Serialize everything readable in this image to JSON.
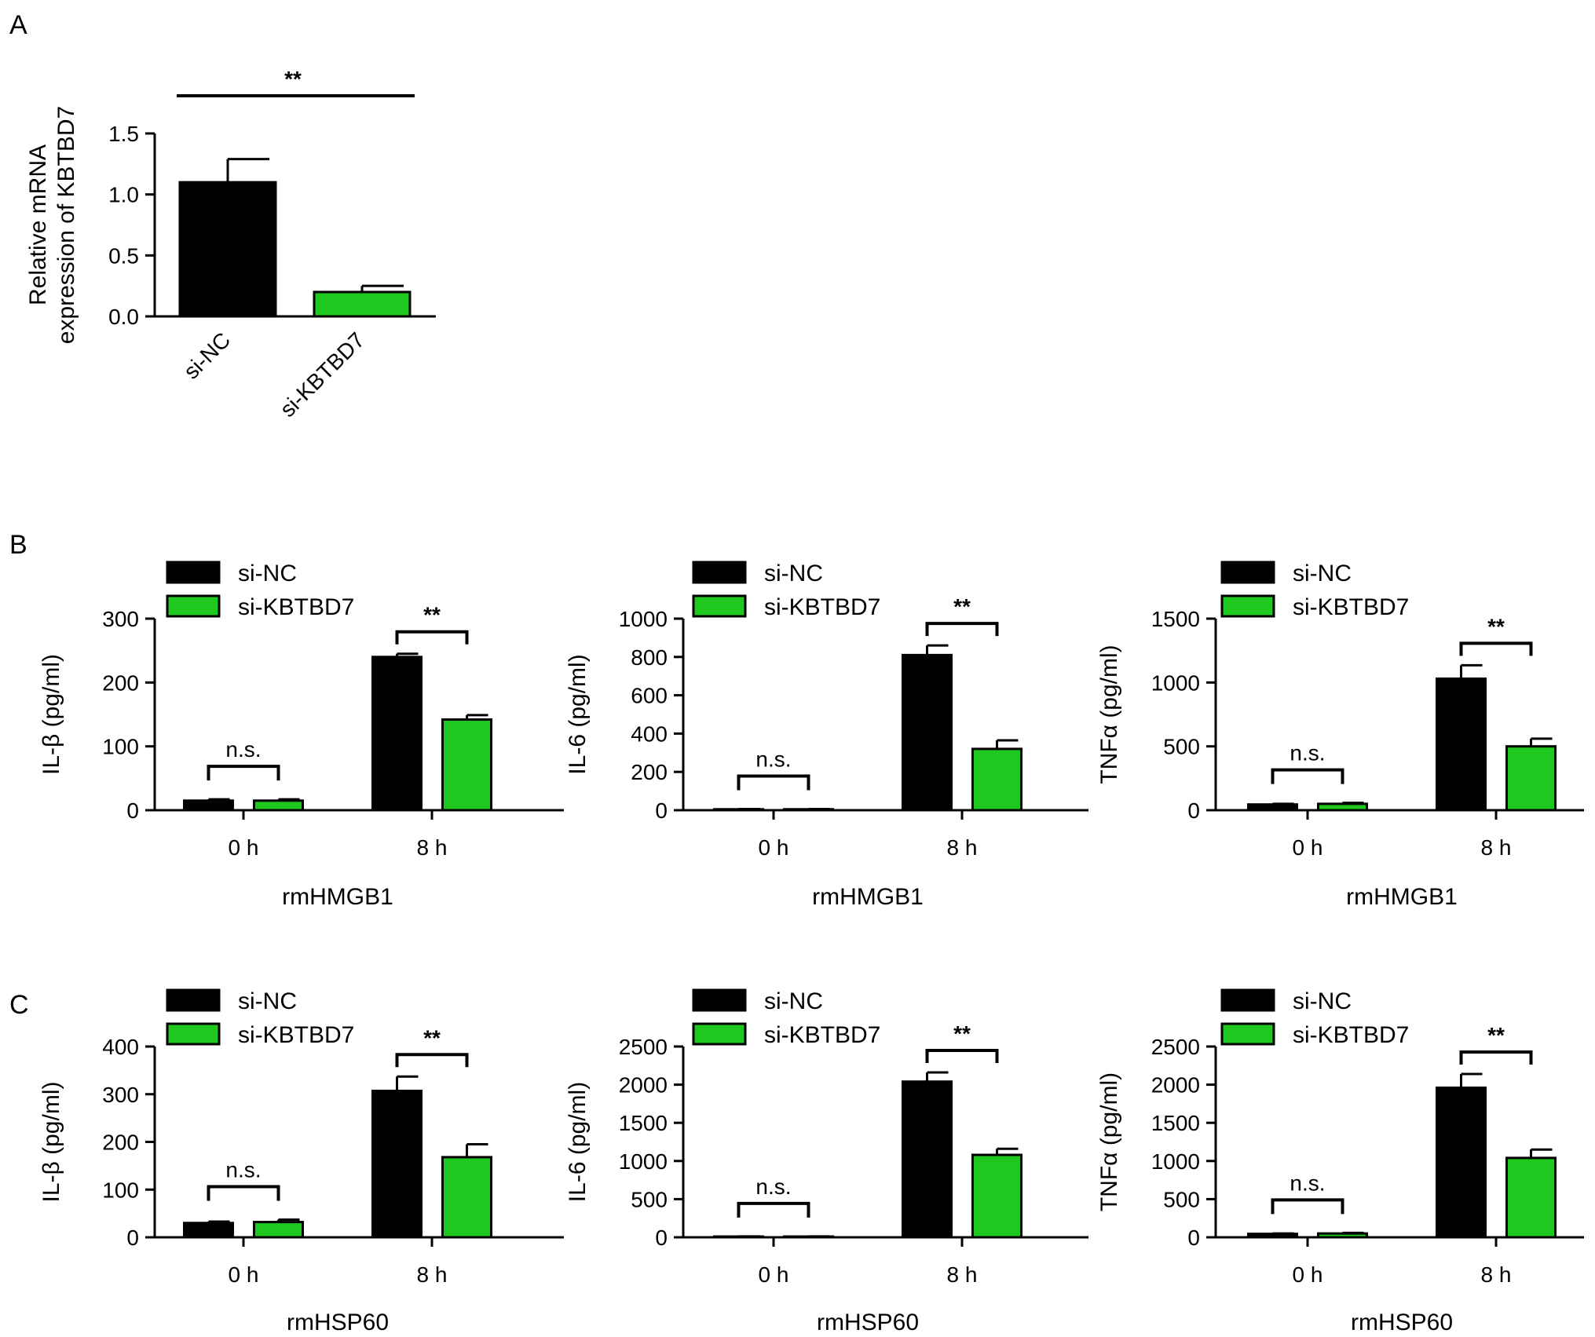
{
  "colors": {
    "sinc": "#000000",
    "kbtbd7": "#1ec81e",
    "axis": "#000000"
  },
  "chart_data": [
    {
      "panel": "A",
      "type": "bar",
      "categories": [
        "si-NC",
        "si-KBTBD7"
      ],
      "values": [
        1.1,
        0.2
      ],
      "errors": [
        0.19,
        0.05
      ],
      "ylabel_lines": [
        "Relative mRNA",
        "expression of KBTBD7"
      ],
      "ylim": [
        0,
        1.5
      ],
      "yticks": [
        {
          "v": 0,
          "label": "0.0"
        },
        {
          "v": 0.5,
          "label": "0.5"
        },
        {
          "v": 1,
          "label": "1.0"
        },
        {
          "v": 1.5,
          "label": "1.5"
        }
      ],
      "significance": [
        {
          "label": "**",
          "from": 0,
          "to": 1
        }
      ],
      "legend": false
    },
    {
      "panel": "B",
      "type": "bar",
      "categories": [
        "0 h",
        "8 h"
      ],
      "xlabel": "rmHMGB1",
      "ylabel": "IL-β (pg/ml)",
      "series": [
        {
          "name": "si-NC",
          "values": [
            15,
            240
          ],
          "errors": [
            2,
            5
          ]
        },
        {
          "name": "si-KBTBD7",
          "values": [
            15,
            142
          ],
          "errors": [
            2,
            7
          ]
        }
      ],
      "ylim": [
        0,
        300
      ],
      "yticks": [
        {
          "v": 0,
          "label": "0"
        },
        {
          "v": 100,
          "label": "100"
        },
        {
          "v": 200,
          "label": "200"
        },
        {
          "v": 300,
          "label": "300"
        }
      ],
      "significance": [
        {
          "label": "n.s.",
          "group": 0
        },
        {
          "label": "**",
          "group": 1
        }
      ],
      "legend": true
    },
    {
      "panel": "",
      "type": "bar",
      "categories": [
        "0 h",
        "8 h"
      ],
      "xlabel": "rmHMGB1",
      "ylabel": "IL-6 (pg/ml)",
      "series": [
        {
          "name": "si-NC",
          "values": [
            5,
            810
          ],
          "errors": [
            1,
            50
          ]
        },
        {
          "name": "si-KBTBD7",
          "values": [
            5,
            320
          ],
          "errors": [
            1,
            45
          ]
        }
      ],
      "ylim": [
        0,
        1000
      ],
      "yticks": [
        {
          "v": 0,
          "label": "0"
        },
        {
          "v": 200,
          "label": "200"
        },
        {
          "v": 400,
          "label": "400"
        },
        {
          "v": 600,
          "label": "600"
        },
        {
          "v": 800,
          "label": "800"
        },
        {
          "v": 1000,
          "label": "1000"
        }
      ],
      "significance": [
        {
          "label": "n.s.",
          "group": 0
        },
        {
          "label": "**",
          "group": 1
        }
      ],
      "legend": true
    },
    {
      "panel": "",
      "type": "bar",
      "categories": [
        "0 h",
        "8 h"
      ],
      "xlabel": "rmHMGB1",
      "ylabel": "TNFα (pg/ml)",
      "series": [
        {
          "name": "si-NC",
          "values": [
            45,
            1030
          ],
          "errors": [
            5,
            105
          ]
        },
        {
          "name": "si-KBTBD7",
          "values": [
            50,
            500
          ],
          "errors": [
            8,
            60
          ]
        }
      ],
      "ylim": [
        0,
        1500
      ],
      "yticks": [
        {
          "v": 0,
          "label": "0"
        },
        {
          "v": 500,
          "label": "500"
        },
        {
          "v": 1000,
          "label": "1000"
        },
        {
          "v": 1500,
          "label": "1500"
        }
      ],
      "significance": [
        {
          "label": "n.s.",
          "group": 0
        },
        {
          "label": "**",
          "group": 1
        }
      ],
      "legend": true
    },
    {
      "panel": "C",
      "type": "bar",
      "categories": [
        "0 h",
        "8 h"
      ],
      "xlabel": "rmHSP60",
      "ylabel": "IL-β (pg/ml)",
      "series": [
        {
          "name": "si-NC",
          "values": [
            30,
            307
          ],
          "errors": [
            3,
            30
          ]
        },
        {
          "name": "si-KBTBD7",
          "values": [
            32,
            168
          ],
          "errors": [
            5,
            27
          ]
        }
      ],
      "ylim": [
        0,
        400
      ],
      "yticks": [
        {
          "v": 0,
          "label": "0"
        },
        {
          "v": 100,
          "label": "100"
        },
        {
          "v": 200,
          "label": "200"
        },
        {
          "v": 300,
          "label": "300"
        },
        {
          "v": 400,
          "label": "400"
        }
      ],
      "significance": [
        {
          "label": "n.s.",
          "group": 0
        },
        {
          "label": "**",
          "group": 1
        }
      ],
      "legend": true
    },
    {
      "panel": "",
      "type": "bar",
      "categories": [
        "0 h",
        "8 h"
      ],
      "xlabel": "rmHSP60",
      "ylabel": "IL-6 (pg/ml)",
      "series": [
        {
          "name": "si-NC",
          "values": [
            10,
            2040
          ],
          "errors": [
            2,
            120
          ]
        },
        {
          "name": "si-KBTBD7",
          "values": [
            10,
            1080
          ],
          "errors": [
            2,
            80
          ]
        }
      ],
      "ylim": [
        0,
        2500
      ],
      "yticks": [
        {
          "v": 0,
          "label": "0"
        },
        {
          "v": 500,
          "label": "500"
        },
        {
          "v": 1000,
          "label": "1000"
        },
        {
          "v": 1500,
          "label": "1500"
        },
        {
          "v": 2000,
          "label": "2000"
        },
        {
          "v": 2500,
          "label": "2500"
        }
      ],
      "significance": [
        {
          "label": "n.s.",
          "group": 0
        },
        {
          "label": "**",
          "group": 1
        }
      ],
      "legend": true
    },
    {
      "panel": "",
      "type": "bar",
      "categories": [
        "0 h",
        "8 h"
      ],
      "xlabel": "rmHSP60",
      "ylabel": "TNFα (pg/ml)",
      "series": [
        {
          "name": "si-NC",
          "values": [
            45,
            1960
          ],
          "errors": [
            5,
            180
          ]
        },
        {
          "name": "si-KBTBD7",
          "values": [
            50,
            1040
          ],
          "errors": [
            8,
            110
          ]
        }
      ],
      "ylim": [
        0,
        2500
      ],
      "yticks": [
        {
          "v": 0,
          "label": "0"
        },
        {
          "v": 500,
          "label": "500"
        },
        {
          "v": 1000,
          "label": "1000"
        },
        {
          "v": 1500,
          "label": "1500"
        },
        {
          "v": 2000,
          "label": "2000"
        },
        {
          "v": 2500,
          "label": "2500"
        }
      ],
      "significance": [
        {
          "label": "n.s.",
          "group": 0
        },
        {
          "label": "**",
          "group": 1
        }
      ],
      "legend": true
    }
  ]
}
